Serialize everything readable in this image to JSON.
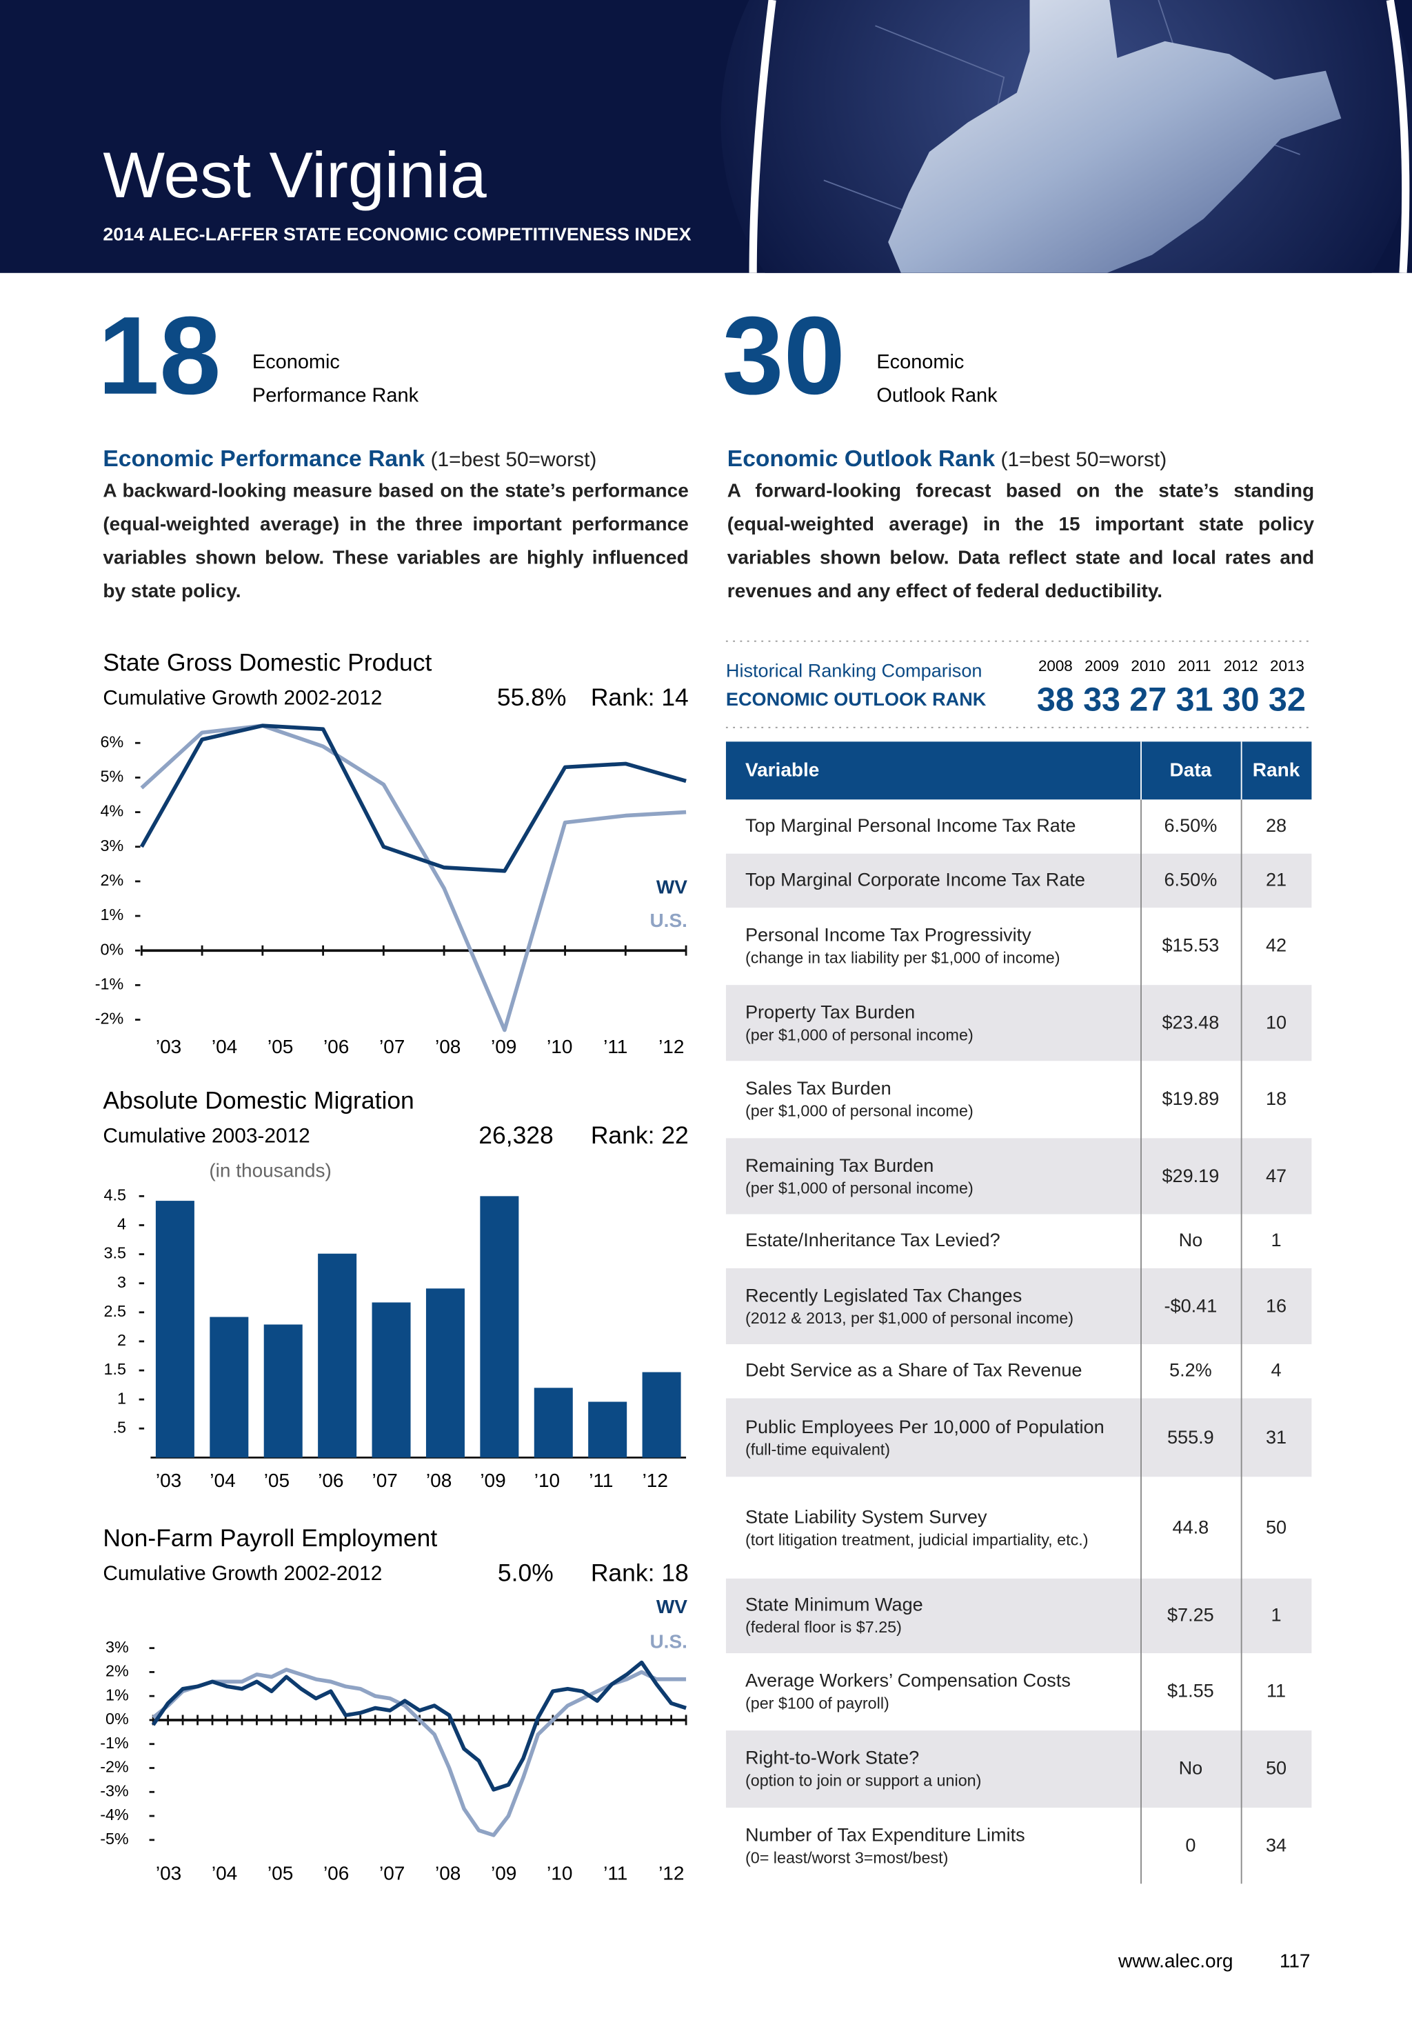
{
  "header": {
    "title": "West Virginia",
    "subtitle": "2014 ALEC-LAFFER STATE ECONOMIC COMPETITIVENESS INDEX"
  },
  "ranks": [
    {
      "value": "18",
      "label": [
        "Economic",
        "Performance Rank"
      ]
    },
    {
      "value": "30",
      "label": [
        "Economic",
        "Outlook Rank"
      ]
    }
  ],
  "descriptions": [
    {
      "heading": "Economic Performance Rank",
      "scale": "(1=best  50=worst)",
      "body": "A backward-looking measure based on the state’s performance (equal-weighted average) in the three important performance variables shown below. These variables are highly influenced by state policy."
    },
    {
      "heading": "Economic Outlook Rank",
      "scale": "(1=best  50=worst)",
      "body": "A forward-looking forecast based on the state’s standing (equal-weighted average) in the 15 important state policy variables shown below. Data reflect state and  local rates and revenues and any effect of federal deductibility."
    }
  ],
  "chart_data": [
    {
      "type": "line",
      "title": "State Gross Domestic Product",
      "subtitle": "Cumulative Growth 2002-2012",
      "value_text": "55.8%",
      "rank_text": "Rank: 14",
      "categories": [
        "’03",
        "’04",
        "’05",
        "’06",
        "’07",
        "’08",
        "’09",
        "’10",
        "’11",
        "’12"
      ],
      "series": [
        {
          "name": "WV",
          "color": "#0d3b6e",
          "values": [
            3.0,
            6.1,
            6.5,
            6.4,
            3.0,
            2.4,
            2.3,
            5.3,
            5.4,
            4.9
          ]
        },
        {
          "name": "U.S.",
          "color": "#8fa3c4",
          "values": [
            4.7,
            6.3,
            6.5,
            5.9,
            4.8,
            1.8,
            -2.3,
            3.7,
            3.9,
            4.0
          ]
        }
      ],
      "ylim": [
        -2.5,
        6.5
      ],
      "yticks": [
        {
          "value": 6,
          "label": "6%"
        },
        {
          "value": 5,
          "label": "5%"
        },
        {
          "value": 4,
          "label": "4%"
        },
        {
          "value": 3,
          "label": "3%"
        },
        {
          "value": 2,
          "label": "2%"
        },
        {
          "value": 1,
          "label": "1%"
        },
        {
          "value": 0,
          "label": "0%"
        },
        {
          "value": -1,
          "label": "-1%"
        },
        {
          "value": -2,
          "label": "-2%"
        }
      ]
    },
    {
      "type": "bar",
      "title": "Absolute Domestic Migration",
      "subtitle": "Cumulative 2003-2012",
      "value_text": "26,328",
      "rank_text": "Rank: 22",
      "unit_note": "(in thousands)",
      "categories": [
        "’03",
        "’04",
        "’05",
        "’06",
        "’07",
        "’08",
        "’09",
        "’10",
        "’11",
        "’12"
      ],
      "values": [
        4.42,
        2.42,
        2.29,
        3.51,
        2.67,
        2.91,
        4.5,
        1.2,
        0.96,
        1.47
      ],
      "color": "#0c4a85",
      "ylim": [
        0,
        4.5
      ],
      "yticks": [
        4.5,
        4,
        3.5,
        3,
        2.5,
        2,
        1.5,
        1,
        {
          "value": 0.5,
          "label": ".5"
        }
      ]
    },
    {
      "type": "line",
      "title": "Non-Farm Payroll Employment",
      "subtitle": "Cumulative Growth 2002-2012",
      "value_text": "5.0%",
      "rank_text": "Rank: 18",
      "xtick_labels": [
        "’03",
        "’04",
        "’05",
        "’06",
        "’07",
        "’08",
        "’09",
        "’10",
        "’11",
        "’12"
      ],
      "series": [
        {
          "name": "WV",
          "color": "#0d3b6e",
          "values": [
            -0.2,
            0.7,
            1.3,
            1.4,
            1.6,
            1.4,
            1.3,
            1.6,
            1.2,
            1.8,
            1.3,
            0.9,
            1.2,
            0.2,
            0.3,
            0.5,
            0.4,
            0.8,
            0.4,
            0.6,
            0.2,
            -1.2,
            -1.7,
            -2.9,
            -2.7,
            -1.6,
            0.1,
            1.2,
            1.3,
            1.2,
            0.8,
            1.5,
            1.9,
            2.4,
            1.5,
            0.7,
            0.5
          ]
        },
        {
          "name": "U.S.",
          "color": "#8fa3c4",
          "values": [
            0.1,
            0.6,
            1.2,
            1.4,
            1.6,
            1.6,
            1.6,
            1.9,
            1.8,
            2.1,
            1.9,
            1.7,
            1.6,
            1.4,
            1.3,
            1.0,
            0.9,
            0.6,
            0,
            -0.6,
            -2.0,
            -3.7,
            -4.6,
            -4.8,
            -4.0,
            -2.4,
            -0.6,
            0,
            0.6,
            0.9,
            1.2,
            1.5,
            1.7,
            2.0,
            1.7,
            1.7,
            1.7
          ]
        }
      ],
      "ylim": [
        -5,
        3
      ],
      "yticks": [
        {
          "value": 3,
          "label": "3%"
        },
        {
          "value": 2,
          "label": "2%"
        },
        {
          "value": 1,
          "label": "1%"
        },
        {
          "value": 0,
          "label": "0%"
        },
        {
          "value": -1,
          "label": "-1%"
        },
        {
          "value": -2,
          "label": "-2%"
        },
        {
          "value": -3,
          "label": "-3%"
        },
        {
          "value": -4,
          "label": "-4%"
        },
        {
          "value": -5,
          "label": "-5%"
        }
      ]
    }
  ],
  "historical": {
    "title": "Historical Ranking Comparison",
    "subtitle": "ECONOMIC OUTLOOK RANK",
    "years": [
      2008,
      2009,
      2010,
      2011,
      2012,
      2013
    ],
    "ranks": [
      38,
      33,
      27,
      31,
      30,
      32
    ]
  },
  "table": {
    "columns": [
      "Variable",
      "Data",
      "Rank"
    ],
    "rows": [
      {
        "variable": "Top Marginal Personal Income Tax Rate",
        "data": "6.50%",
        "rank": 28
      },
      {
        "variable": "Top Marginal Corporate Income Tax Rate",
        "data": "6.50%",
        "rank": 21
      },
      {
        "variable": "Personal Income Tax Progressivity",
        "note": "(change in tax liability per $1,000 of income)",
        "data": "$15.53",
        "rank": 42
      },
      {
        "variable": "Property Tax Burden",
        "note": "(per $1,000 of personal income)",
        "data": "$23.48",
        "rank": 10
      },
      {
        "variable": "Sales Tax Burden",
        "note": "(per $1,000 of personal income)",
        "data": "$19.89",
        "rank": 18
      },
      {
        "variable": "Remaining Tax Burden",
        "note": "(per $1,000 of personal income)",
        "data": "$29.19",
        "rank": 47
      },
      {
        "variable": "Estate/Inheritance Tax Levied?",
        "data": "No",
        "rank": 1
      },
      {
        "variable": "Recently Legislated Tax Changes",
        "note": "(2012 & 2013, per $1,000 of personal income)",
        "data": "-$0.41",
        "rank": 16
      },
      {
        "variable": "Debt Service as a Share of Tax Revenue",
        "data": "5.2%",
        "rank": 4
      },
      {
        "variable": "Public Employees Per 10,000 of Population",
        "note": "(full-time equivalent)",
        "data": "555.9",
        "rank": 31
      },
      {
        "variable": "State Liability System Survey",
        "note": "(tort litigation treatment, judicial impartiality, etc.)",
        "data": "44.8",
        "rank": 50
      },
      {
        "variable": "State Minimum Wage",
        "note": "(federal floor is $7.25)",
        "data": "$7.25",
        "rank": 1
      },
      {
        "variable": "Average Workers’ Compensation Costs",
        "note": "(per $100 of payroll)",
        "data": "$1.55",
        "rank": 11
      },
      {
        "variable": "Right-to-Work State?",
        "note": "(option to join or support a union)",
        "data": "No",
        "rank": 50
      },
      {
        "variable": "Number of Tax Expenditure Limits",
        "note": "(0= least/worst   3=most/best)",
        "data": "0",
        "rank": 34
      }
    ]
  },
  "footer": {
    "url": "www.alec.org",
    "page": "117"
  }
}
